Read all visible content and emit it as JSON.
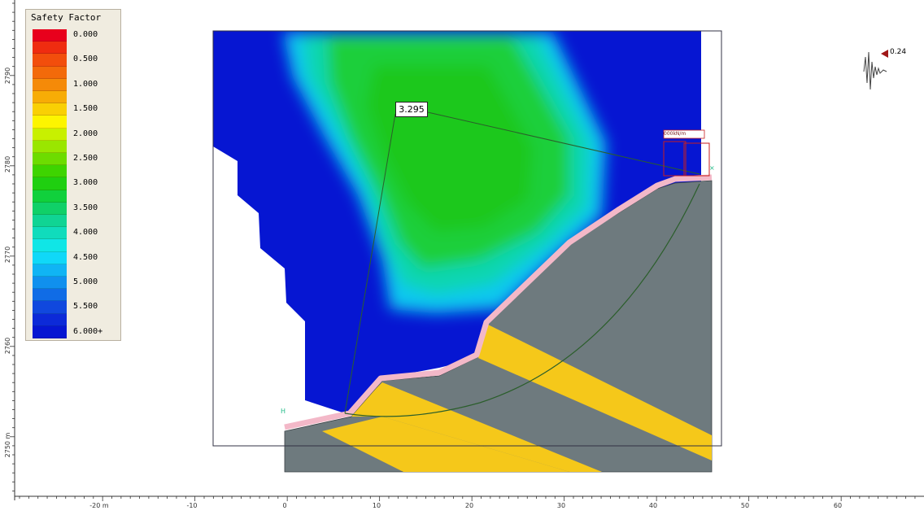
{
  "legend": {
    "title": "Safety Factor",
    "items": [
      {
        "label": "0.000",
        "color": "#e8001c"
      },
      {
        "label": "",
        "color": "#ef2c10"
      },
      {
        "label": "0.500",
        "color": "#f24e0c"
      },
      {
        "label": "",
        "color": "#f36a0a"
      },
      {
        "label": "1.000",
        "color": "#f58a08"
      },
      {
        "label": "",
        "color": "#f7ac06"
      },
      {
        "label": "1.500",
        "color": "#f9d004"
      },
      {
        "label": "",
        "color": "#fdf500"
      },
      {
        "label": "2.000",
        "color": "#c8f000"
      },
      {
        "label": "",
        "color": "#9ae600"
      },
      {
        "label": "2.500",
        "color": "#6ddc00"
      },
      {
        "label": "",
        "color": "#3ed400"
      },
      {
        "label": "3.000",
        "color": "#1fcf10"
      },
      {
        "label": "",
        "color": "#10d03c"
      },
      {
        "label": "3.500",
        "color": "#10d068"
      },
      {
        "label": "",
        "color": "#10d494"
      },
      {
        "label": "4.000",
        "color": "#10dcbc"
      },
      {
        "label": "",
        "color": "#10e6e6"
      },
      {
        "label": "4.500",
        "color": "#10d8f8"
      },
      {
        "label": "",
        "color": "#10b4f4"
      },
      {
        "label": "5.000",
        "color": "#1090ee"
      },
      {
        "label": "",
        "color": "#106ce6"
      },
      {
        "label": "5.500",
        "color": "#1048de"
      },
      {
        "label": "",
        "color": "#0c2ad8"
      },
      {
        "label": "6.000+",
        "color": "#0616d2"
      }
    ]
  },
  "axes": {
    "x_ticks": [
      "-20 m",
      "-10",
      "0",
      "10",
      "20",
      "30",
      "40",
      "50",
      "60"
    ],
    "y_ticks": [
      "2790",
      "2780",
      "2770",
      "2760",
      "2750 m"
    ]
  },
  "analysis": {
    "factor_of_safety": "3.295",
    "load_label": "000kN/m",
    "seismic_coefficient": "0.24"
  },
  "colors": {
    "background": "#ffffff",
    "high_fs_blue": "#0616d2",
    "low_fs_green": "#1fcf10",
    "soil_grey": "#6e7a7e",
    "weak_layer_yellow": "#f5c81a",
    "surface_pink": "#f3b8c8",
    "slip_line": "#2b5e2b",
    "load_box": "#c81e1e"
  }
}
